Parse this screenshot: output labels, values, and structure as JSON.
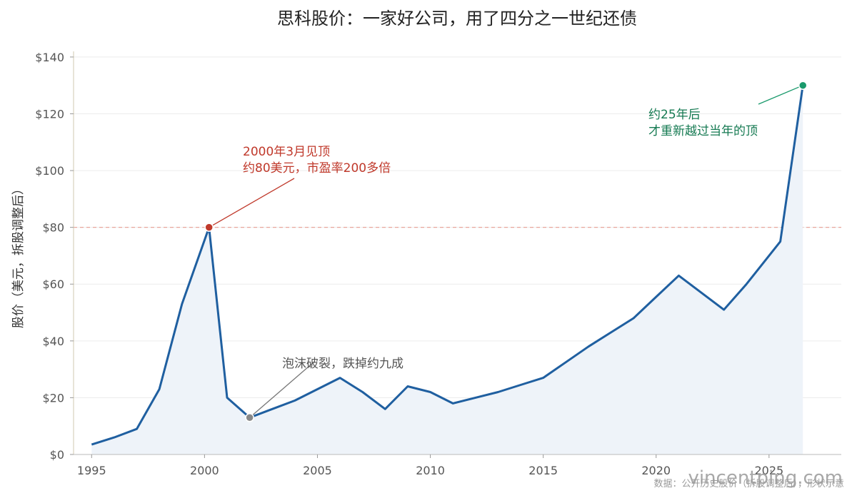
{
  "chart_data": {
    "type": "line",
    "title": "思科股价：一家好公司，用了四分之一世纪还债",
    "ylabel": "股价（美元，拆股调整后）",
    "xlabel": "",
    "xlim": [
      1994.2,
      2028.2
    ],
    "ylim": [
      0,
      145
    ],
    "x_ticks": [
      1995,
      2000,
      2005,
      2010,
      2015,
      2020,
      2025
    ],
    "y_ticks": [
      0,
      20,
      40,
      60,
      80,
      100,
      120,
      140
    ],
    "y_tick_labels": [
      "$0",
      "$20",
      "$40",
      "$60",
      "$80",
      "$100",
      "$120",
      "$140"
    ],
    "grid": "horizontal",
    "reference_line": {
      "y": 80,
      "color": "#e8a59c",
      "style": "dashed"
    },
    "series": [
      {
        "color": "#1f5fa0",
        "area_fill": "#eef3f9",
        "x": [
          1995,
          1996,
          1997,
          1998,
          1999,
          2000.2,
          2001,
          2002,
          2003,
          2004,
          2005,
          2006,
          2007,
          2008,
          2009,
          2010,
          2011,
          2012,
          2013,
          2014,
          2015,
          2016,
          2017,
          2018,
          2019,
          2020,
          2021,
          2022,
          2023,
          2024,
          2025.5,
          2026.5
        ],
        "y": [
          3.5,
          6,
          9,
          23,
          53,
          80,
          20,
          13,
          16,
          19,
          23,
          27,
          22,
          16,
          24,
          22,
          18,
          20,
          22,
          24.5,
          27,
          32.5,
          38,
          43,
          48,
          55.5,
          63,
          57,
          51,
          60,
          75,
          130
        ]
      }
    ],
    "highlight_points": [
      {
        "x": 2000.2,
        "y": 80,
        "color": "#c0392b"
      },
      {
        "x": 2002,
        "y": 13,
        "color": "#888888"
      },
      {
        "x": 2026.5,
        "y": 130,
        "color": "#1a9a6c"
      }
    ],
    "annotations": [
      {
        "lines": [
          "2000年3月见顶",
          "约80美元，市盈率200多倍"
        ],
        "color": "#c0392b",
        "target": [
          2000.2,
          80
        ]
      },
      {
        "lines": [
          "泡沫破裂，跌掉约九成"
        ],
        "color": "#666666",
        "target": [
          2002,
          13
        ]
      },
      {
        "lines": [
          "约25年后",
          "才重新越过当年的顶"
        ],
        "color": "#157a52",
        "target": [
          2026.5,
          130
        ]
      }
    ],
    "source_note": "数据：公开历史股价（拆股调整后），形状示意",
    "watermark": "vincentping.com"
  }
}
